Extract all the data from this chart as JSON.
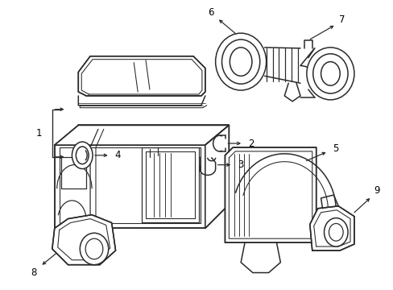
{
  "background_color": "#ffffff",
  "line_color": "#2a2a2a",
  "line_width": 1.1,
  "label_fontsize": 8.5,
  "fig_w": 4.89,
  "fig_h": 3.6,
  "dpi": 100
}
